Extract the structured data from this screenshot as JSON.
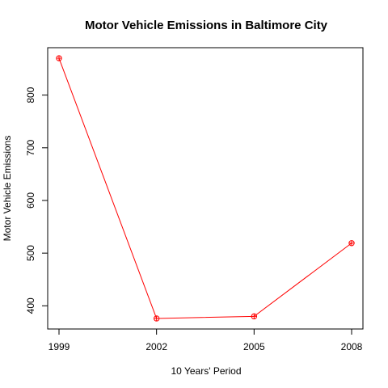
{
  "chart_data": {
    "type": "line",
    "title": "Motor Vehicle Emissions in Baltimore City",
    "xlabel": "10 Years' Period",
    "ylabel": "Motor Vehicle Emissions",
    "x": [
      "1999",
      "2002",
      "2005",
      "2008"
    ],
    "series": [
      {
        "values": [
          870,
          376,
          380,
          519
        ],
        "color": "#ff0000"
      }
    ],
    "yticks": [
      400,
      500,
      600,
      700,
      800
    ],
    "ylim": [
      356,
      890
    ],
    "grid": false
  }
}
